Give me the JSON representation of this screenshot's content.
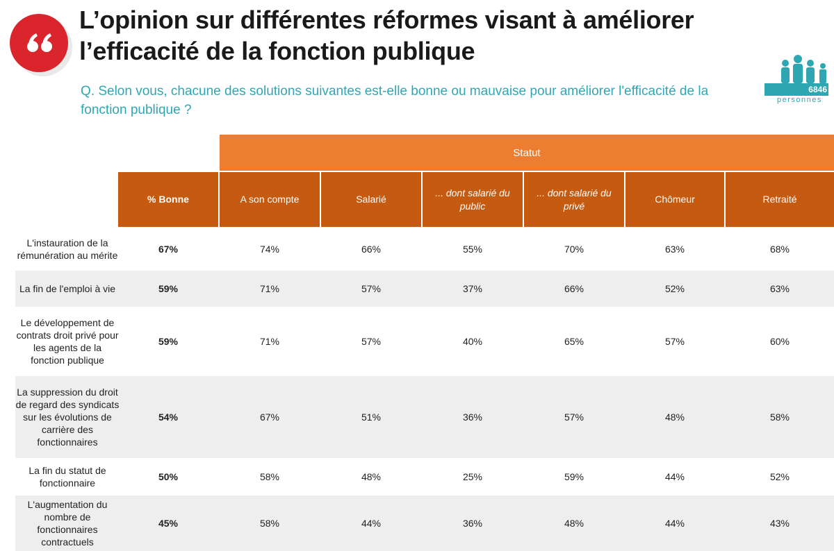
{
  "header": {
    "title": "L’opinion sur différentes réformes visant à améliorer l’efficacité de la fonction publique",
    "question": "Q. Selon vous, chacune des solutions suivantes est-elle bonne ou mauvaise pour améliorer l'efficacité de la fonction publique ?",
    "sample_count": "6846",
    "sample_unit": "personnes",
    "quote_icon": "quote-icon",
    "people_icon": "people-icon"
  },
  "colors": {
    "accent_red": "#d9252b",
    "teal": "#2ea7b2",
    "orange_light": "#ed7d31",
    "orange_dark": "#c55a11",
    "row_shade": "#eeeeee"
  },
  "table": {
    "group_header": "Statut",
    "columns": [
      "% Bonne",
      "A son compte",
      "Salarié",
      "... dont salarié du public",
      "... dont salarié du privé",
      "Chômeur",
      "Retraité"
    ],
    "rows": [
      {
        "label": "L'instauration de la rémunération au mérite",
        "values": [
          "67%",
          "74%",
          "66%",
          "55%",
          "70%",
          "63%",
          "68%"
        ]
      },
      {
        "label": "La fin de l'emploi à vie",
        "values": [
          "59%",
          "71%",
          "57%",
          "37%",
          "66%",
          "52%",
          "63%"
        ]
      },
      {
        "label": "Le développement de contrats droit privé pour les agents de la fonction publique",
        "values": [
          "59%",
          "71%",
          "57%",
          "40%",
          "65%",
          "57%",
          "60%"
        ]
      },
      {
        "label": "La suppression du droit de regard des syndicats sur les évolutions de carrière des fonctionnaires",
        "values": [
          "54%",
          "67%",
          "51%",
          "36%",
          "57%",
          "48%",
          "58%"
        ]
      },
      {
        "label": "La fin du statut de fonctionnaire",
        "values": [
          "50%",
          "58%",
          "48%",
          "25%",
          "59%",
          "44%",
          "52%"
        ]
      },
      {
        "label": "L'augmentation du nombre de fonctionnaires contractuels",
        "values": [
          "45%",
          "58%",
          "44%",
          "36%",
          "48%",
          "44%",
          "43%"
        ]
      }
    ]
  }
}
